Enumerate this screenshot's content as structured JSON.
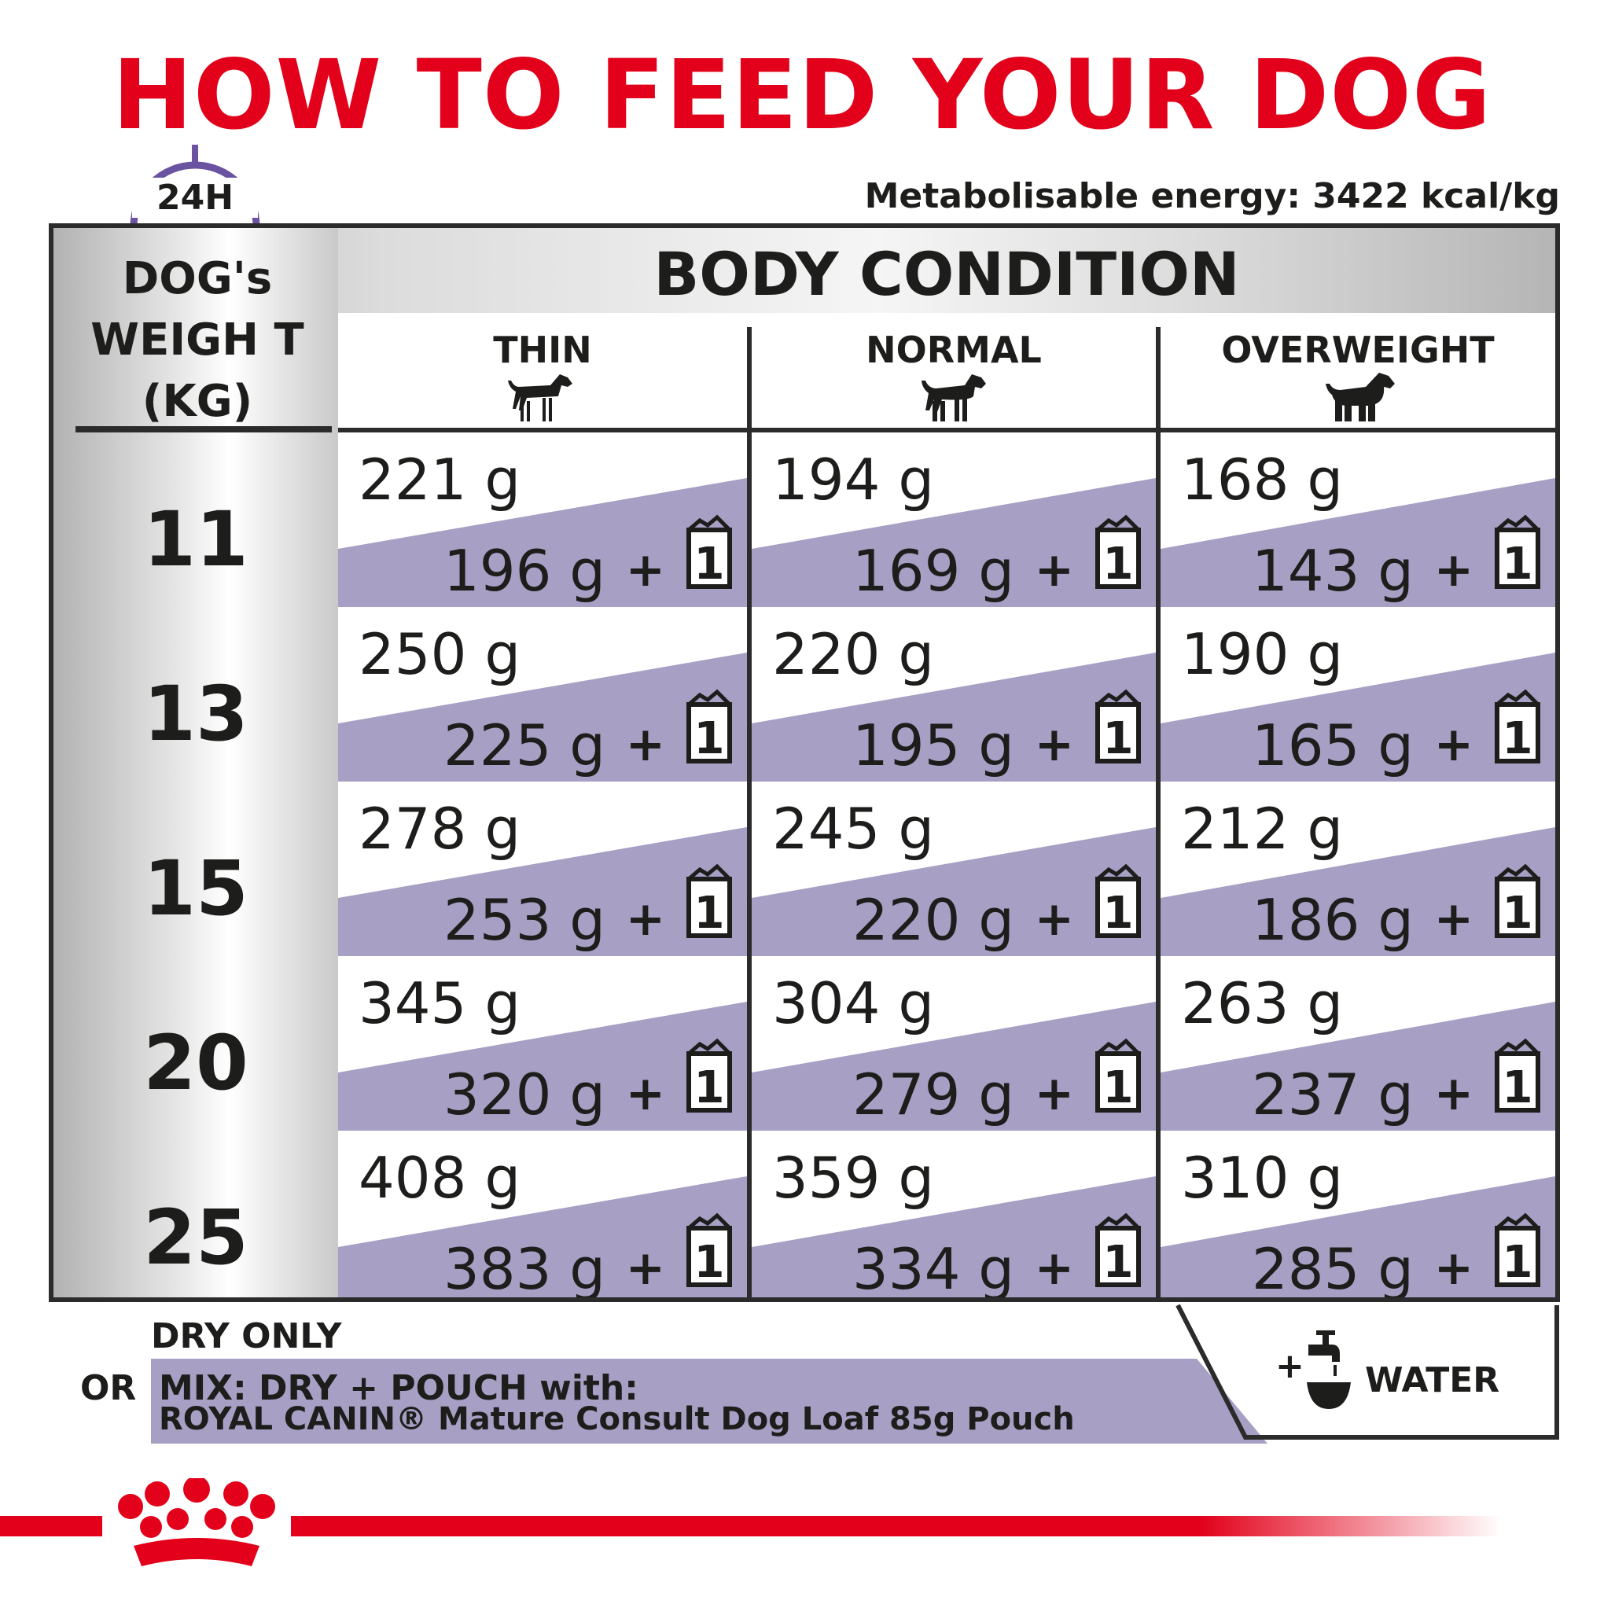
{
  "title": "HOW TO FEED YOUR DOG",
  "clock_label": "24H",
  "energy": "Metabolisable energy: 3422 kcal/kg",
  "table": {
    "weight_header": "DOG's WEIGH T (KG)",
    "body_condition": "BODY CONDITION",
    "columns": [
      "THIN",
      "NORMAL",
      "OVERWEIGHT"
    ],
    "pouch_count": "1",
    "plus": "+",
    "rows": [
      {
        "weight": "11",
        "cells": [
          {
            "dry": "221 g",
            "mix": "196 g"
          },
          {
            "dry": "194 g",
            "mix": "169 g"
          },
          {
            "dry": "168 g",
            "mix": "143 g"
          }
        ]
      },
      {
        "weight": "13",
        "cells": [
          {
            "dry": "250 g",
            "mix": "225 g"
          },
          {
            "dry": "220 g",
            "mix": "195 g"
          },
          {
            "dry": "190 g",
            "mix": "165 g"
          }
        ]
      },
      {
        "weight": "15",
        "cells": [
          {
            "dry": "278 g",
            "mix": "253 g"
          },
          {
            "dry": "245 g",
            "mix": "220 g"
          },
          {
            "dry": "212 g",
            "mix": "186 g"
          }
        ]
      },
      {
        "weight": "20",
        "cells": [
          {
            "dry": "345 g",
            "mix": "320 g"
          },
          {
            "dry": "304 g",
            "mix": "279 g"
          },
          {
            "dry": "263 g",
            "mix": "237 g"
          }
        ]
      },
      {
        "weight": "25",
        "cells": [
          {
            "dry": "408 g",
            "mix": "383 g"
          },
          {
            "dry": "359 g",
            "mix": "334 g"
          },
          {
            "dry": "310 g",
            "mix": "285 g"
          }
        ]
      }
    ]
  },
  "legend": {
    "dry_only": "DRY ONLY",
    "or": "OR",
    "mix_line1": "MIX: DRY + POUCH with:",
    "mix_line2": "ROYAL CANIN® Mature Consult Dog Loaf 85g Pouch",
    "plus": "+",
    "water": "WATER"
  },
  "colors": {
    "title_red": "#e2001a",
    "band_purple": "#a79fc4",
    "clock_purple": "#6a53a0",
    "text_dark": "#1d1d1b"
  },
  "icons": [
    "clock-icon",
    "dog-thin-icon",
    "dog-normal-icon",
    "dog-overweight-icon",
    "pouch-icon",
    "water-tap-icon",
    "royal-canin-crown-logo"
  ]
}
